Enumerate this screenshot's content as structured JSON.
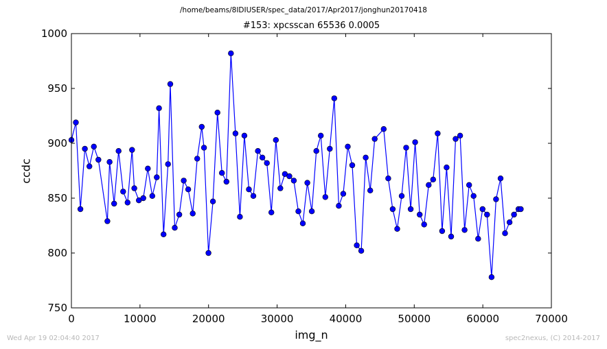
{
  "header": {
    "path": "/home/beams/8IDIUSER/spec_data/2017/Apr2017/jonghun20170418"
  },
  "footer": {
    "timestamp": "Wed Apr 19 02:04:40 2017",
    "credit": "spec2nexus, (C) 2014-2017"
  },
  "chart_data": {
    "type": "line",
    "title": "#153: xpcsscan 65536 0.0005",
    "xlabel": "img_n",
    "ylabel": "ccdc",
    "xlim": [
      0,
      70000
    ],
    "ylim": [
      750,
      1000
    ],
    "xticks": [
      0,
      10000,
      20000,
      30000,
      40000,
      50000,
      60000,
      70000
    ],
    "yticks": [
      750,
      800,
      850,
      900,
      950,
      1000
    ],
    "grid": false,
    "marker": "circle",
    "color": "#0000ff",
    "series": [
      {
        "x": [
          0,
          655,
          1311,
          1966,
          2621,
          3277,
          3932,
          5243,
          5571,
          6226,
          6882,
          7537,
          8192,
          8847,
          9175,
          9830,
          10486,
          11141,
          11796,
          12452,
          12780,
          13435,
          14090,
          14418,
          15073,
          15729,
          16384,
          17039,
          17695,
          18350,
          19005,
          19333,
          19988,
          20644,
          21299,
          21954,
          22610,
          23265,
          23920,
          24576,
          25231,
          25887,
          26542,
          27197,
          27853,
          28508,
          29163,
          29819,
          30474,
          31130,
          31785,
          32440,
          33096,
          33751,
          34406,
          35062,
          35717,
          36372,
          37028,
          37683,
          38339,
          38994,
          39649,
          40305,
          40960,
          41615,
          42271,
          42926,
          43581,
          44237,
          45548,
          46203,
          46858,
          47514,
          48169,
          48824,
          49480,
          50135,
          50790,
          51446,
          52101,
          52756,
          53412,
          54067,
          54723,
          55378,
          56033,
          56689,
          57344,
          57999,
          58655,
          59310,
          59965,
          60621,
          61276,
          61931,
          62587,
          63242,
          63898,
          64553,
          65208,
          65536
        ],
        "values": [
          903,
          919,
          840,
          895,
          879,
          897,
          885,
          829,
          883,
          845,
          893,
          856,
          846,
          894,
          859,
          848,
          850,
          877,
          852,
          869,
          932,
          817,
          881,
          954,
          823,
          835,
          866,
          858,
          836,
          886,
          915,
          896,
          800,
          847,
          928,
          873,
          865,
          982,
          909,
          833,
          907,
          858,
          852,
          893,
          887,
          882,
          837,
          903,
          859,
          872,
          870,
          866,
          838,
          827,
          864,
          838,
          893,
          907,
          851,
          895,
          941,
          843,
          854,
          897,
          880,
          807,
          802,
          887,
          857,
          904,
          913,
          868,
          840,
          822,
          852,
          896,
          840,
          901,
          835,
          826,
          862,
          867,
          909,
          820,
          878,
          815,
          904,
          907,
          821,
          862,
          852,
          813,
          840,
          835,
          778,
          849,
          868,
          818,
          828,
          835,
          840,
          840
        ]
      }
    ]
  }
}
